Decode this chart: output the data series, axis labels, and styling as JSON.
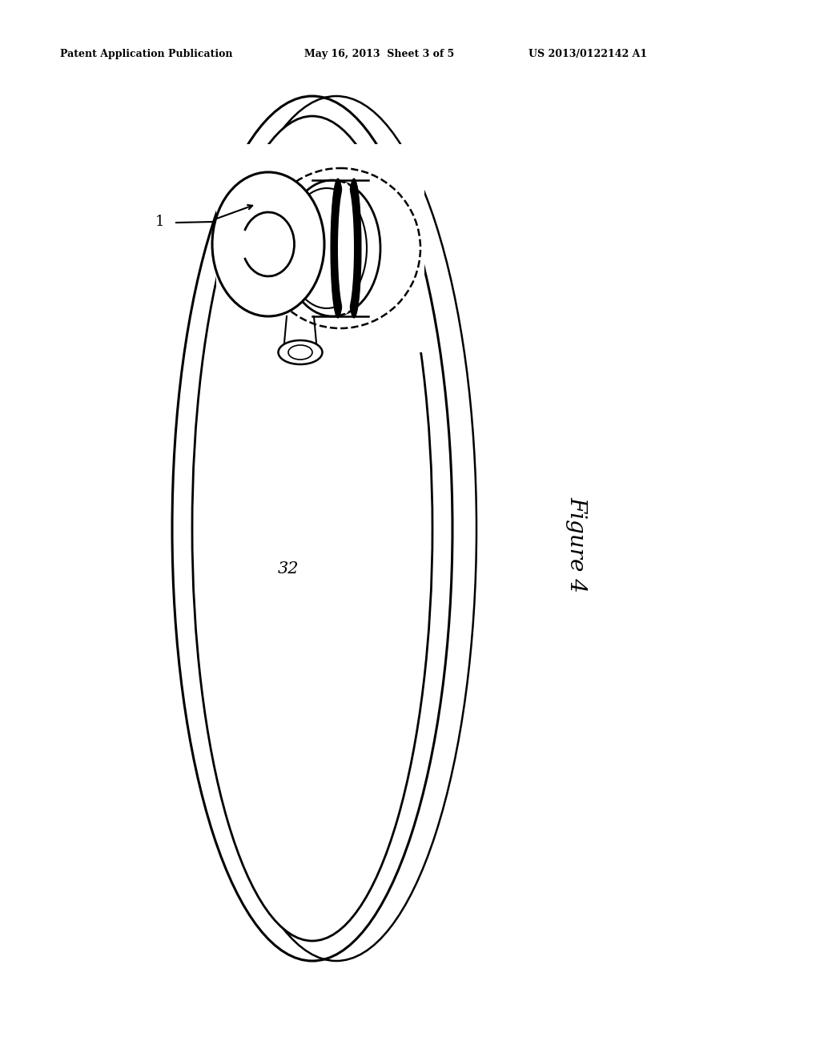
{
  "bg_color": "#ffffff",
  "line_color": "#000000",
  "header_left": "Patent Application Publication",
  "header_mid": "May 16, 2013  Sheet 3 of 5",
  "header_right": "US 2013/0122142 A1",
  "figure_label": "Figure 4",
  "label_1": "1",
  "label_32": "32",
  "figsize": [
    10.24,
    13.2
  ],
  "dpi": 100
}
